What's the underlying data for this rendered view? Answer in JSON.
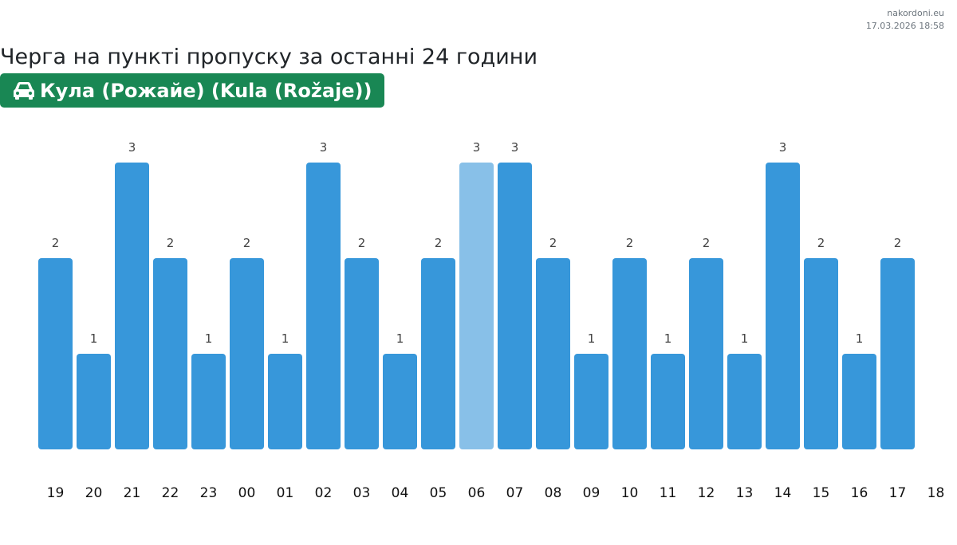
{
  "source": {
    "site": "nakordoni.eu",
    "timestamp": "17.03.2026 18:58"
  },
  "header": {
    "title": "Черга на пункті пропуску за останні 24 години",
    "checkpoint": "Кула (Рожайе) (Kula (Rožaje))",
    "checkpoint_icon": "car-icon"
  },
  "colors": {
    "bar": "#3797da",
    "bar_highlight": "#88c0e8",
    "badge": "#198754"
  },
  "chart_data": {
    "type": "bar",
    "categories": [
      "19",
      "20",
      "21",
      "22",
      "23",
      "00",
      "01",
      "02",
      "03",
      "04",
      "05",
      "06",
      "07",
      "08",
      "09",
      "10",
      "11",
      "12",
      "13",
      "14",
      "15",
      "16",
      "17"
    ],
    "values": [
      2,
      1,
      3,
      2,
      1,
      2,
      1,
      3,
      2,
      1,
      2,
      3,
      3,
      2,
      1,
      2,
      1,
      2,
      1,
      3,
      2,
      1,
      2
    ],
    "extra_tick_label": "18",
    "highlighted_category": "06",
    "ylim": [
      0,
      3
    ],
    "grid": false,
    "legend": "none",
    "title": "",
    "xlabel": "",
    "ylabel": ""
  }
}
